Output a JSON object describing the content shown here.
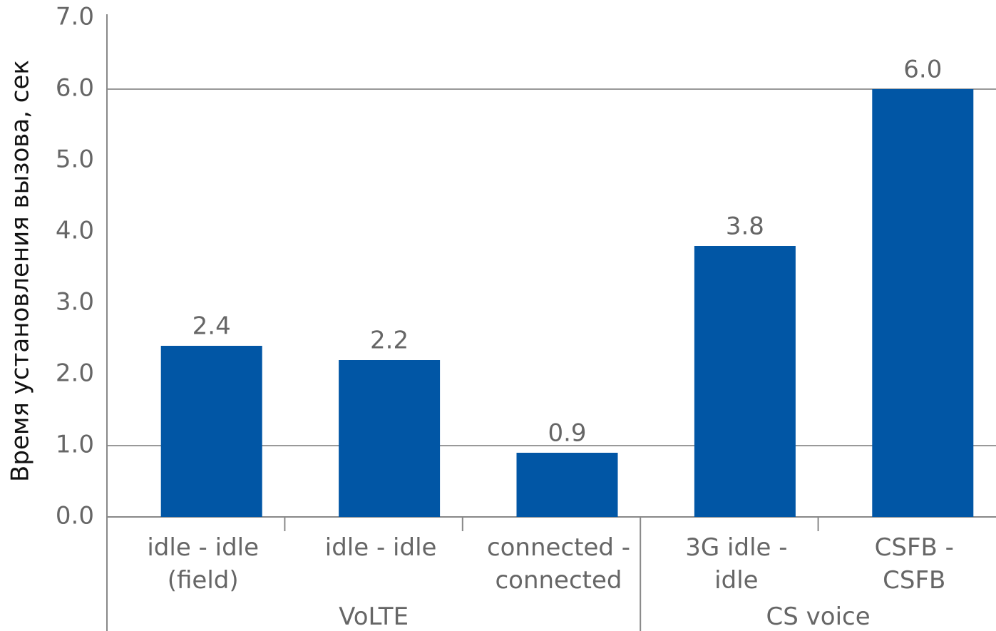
{
  "chart_data": {
    "type": "bar",
    "y_label": "Время установления вызова, сек",
    "categories": [
      "idle - idle\n(field)",
      "idle - idle",
      "connected -\nconnected",
      "3G idle -\nidle",
      "CSFB - CSFB"
    ],
    "groups": [
      {
        "name": "VoLTE",
        "count": 3
      },
      {
        "name": "CS voice",
        "count": 2
      }
    ],
    "values": [
      2.4,
      2.2,
      0.9,
      3.8,
      6.0
    ],
    "value_labels": [
      "2.4",
      "2.2",
      "0.9",
      "3.8",
      "6.0"
    ],
    "color": "#0156a5",
    "ylim": [
      0,
      7
    ],
    "yticks": [
      {
        "value": 0,
        "label": "0.0"
      },
      {
        "value": 1,
        "label": "1.0"
      },
      {
        "value": 2,
        "label": "2.0"
      },
      {
        "value": 3,
        "label": "3.0"
      },
      {
        "value": 4,
        "label": "4.0"
      },
      {
        "value": 5,
        "label": "5.0"
      },
      {
        "value": 6,
        "label": "6.0"
      },
      {
        "value": 7,
        "label": "7.0"
      }
    ],
    "gridlines": [
      1,
      6
    ]
  }
}
